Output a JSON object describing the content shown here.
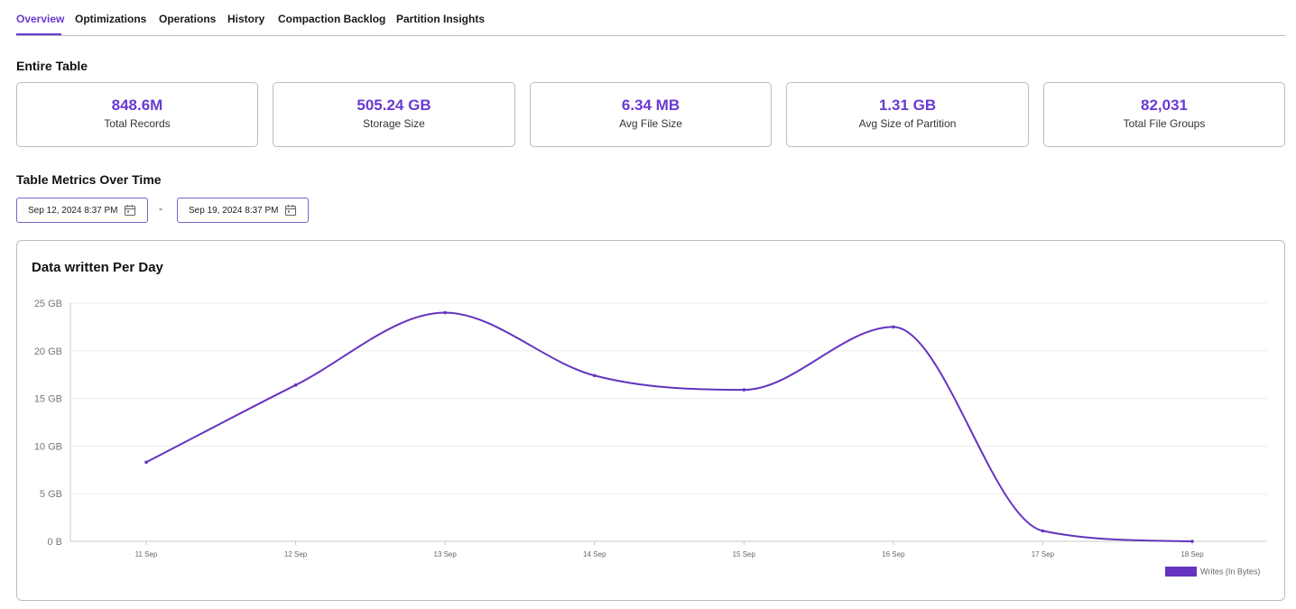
{
  "tabs": [
    {
      "label": "Overview",
      "active": true
    },
    {
      "label": "Optimizations",
      "active": false
    },
    {
      "label": "Operations",
      "active": false
    },
    {
      "label": "History",
      "active": false
    },
    {
      "label": "Compaction Backlog",
      "active": false
    },
    {
      "label": "Partition Insights",
      "active": false
    }
  ],
  "entire_table": {
    "title": "Entire Table",
    "metrics": [
      {
        "value": "848.6M",
        "label": "Total Records"
      },
      {
        "value": "505.24 GB",
        "label": "Storage Size"
      },
      {
        "value": "6.34 MB",
        "label": "Avg File Size"
      },
      {
        "value": "1.31 GB",
        "label": "Avg Size of Partition"
      },
      {
        "value": "82,031",
        "label": "Total File Groups"
      }
    ]
  },
  "metrics_over_time": {
    "title": "Table Metrics Over Time",
    "start_date": "Sep 12, 2024 8:37 PM",
    "end_date": "Sep 19, 2024 8:37 PM",
    "separator": "-",
    "calendar_icon": "calendar-icon"
  },
  "colors": {
    "accent": "#6a3ad1",
    "series": "#6534c0"
  },
  "chart_data": {
    "type": "line",
    "title": "Data written Per Day",
    "xlabel": "",
    "ylabel": "",
    "categories": [
      "11 Sep",
      "12 Sep",
      "13 Sep",
      "14 Sep",
      "15 Sep",
      "16 Sep",
      "17 Sep",
      "18 Sep"
    ],
    "series": [
      {
        "name": "Writes (In Bytes)",
        "values_gb": [
          8.3,
          16.4,
          24.0,
          17.4,
          15.9,
          22.5,
          1.1,
          0.0
        ]
      }
    ],
    "y_ticks": [
      "0 B",
      "5 GB",
      "10 GB",
      "15 GB",
      "20 GB",
      "25 GB"
    ],
    "ylim_gb": [
      0,
      25
    ],
    "grid": true,
    "legend": "bottom-right"
  }
}
